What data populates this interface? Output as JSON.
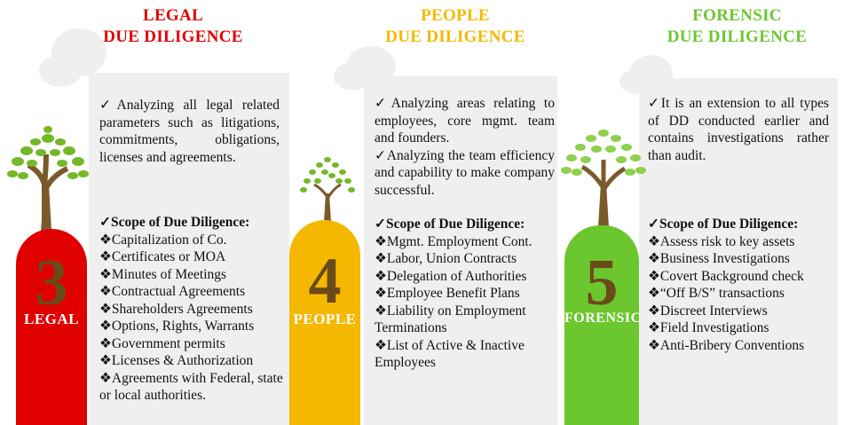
{
  "columns": [
    {
      "id": "legal",
      "title_line1": "LEGAL",
      "title_line2": "DUE DILIGENCE",
      "title_color": "#e00000",
      "pill_color": "#e00000",
      "number": "3",
      "label": "LEGAL",
      "paragraphs": [
        "✓Analyzing all legal related parameters such as litigations, commitments, obligations, licenses and agreements."
      ],
      "scope_heading": "✓Scope of Due Diligence:",
      "scope_items": [
        "❖Capitalization of Co.",
        "❖Certificates or MOA",
        "❖Minutes of Meetings",
        "❖Contractual Agreements",
        "❖Shareholders Agreements",
        "❖Options, Rights, Warrants",
        "❖Government permits",
        "❖Licenses & Authorization",
        "❖Agreements with Federal, state or local authorities."
      ]
    },
    {
      "id": "people",
      "title_line1": "PEOPLE",
      "title_line2": "DUE DILIGENCE",
      "title_color": "#f5b800",
      "pill_color": "#f5b800",
      "number": "4",
      "label": "PEOPLE",
      "paragraphs": [
        "✓Analyzing areas relating to employees, core mgmt. team and founders.",
        "✓Analyzing the team efficiency and capability to make company successful."
      ],
      "scope_heading": "✓Scope of Due Diligence:",
      "scope_items": [
        "❖Mgmt. Employment Cont.",
        "❖Labor, Union Contracts",
        "❖Delegation of Authorities",
        "❖Employee Benefit Plans",
        "❖Liability on Employment Terminations",
        "❖List of Active & Inactive Employees"
      ]
    },
    {
      "id": "forensic",
      "title_line1": "FORENSIC",
      "title_line2": "DUE DILIGENCE",
      "title_color": "#6cc62e",
      "pill_color": "#6cc62e",
      "number": "5",
      "label": "FORENSIC",
      "paragraphs": [
        "✓It is an extension to all types of DD conducted earlier and contains investigations rather than audit."
      ],
      "scope_heading": "✓Scope of Due Diligence:",
      "scope_items": [
        "❖Assess risk to key assets",
        "❖Business Investigations",
        "❖Covert Background check",
        "❖“Off B/S” transactions",
        "❖Discreet Interviews",
        "❖Field Investigations",
        "❖Anti-Bribery Conventions"
      ]
    }
  ]
}
